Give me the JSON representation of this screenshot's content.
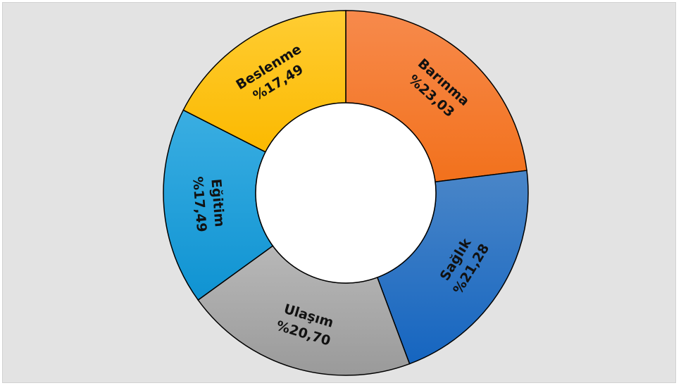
{
  "chart_data": {
    "type": "pie",
    "donut": true,
    "slices": [
      {
        "label": "Barınma",
        "value_label": "%23,03",
        "value": 23.03,
        "color": "#f2711c",
        "color_light": "#f78a4c"
      },
      {
        "label": "Sağlık",
        "value_label": "%21,28",
        "value": 21.28,
        "color": "#1565c0",
        "color_light": "#4a86c8"
      },
      {
        "label": "Ulaşım",
        "value_label": "%20,70",
        "value": 20.7,
        "color": "#9a9a9a",
        "color_light": "#b8b8b8"
      },
      {
        "label": "Eğitim",
        "value_label": "%17,49",
        "value": 17.49,
        "color": "#0f93d2",
        "color_light": "#3aaee2"
      },
      {
        "label": "Beslenme",
        "value_label": "%17,49",
        "value": 17.49,
        "color": "#fbb900",
        "color_light": "#ffcd33"
      }
    ]
  }
}
